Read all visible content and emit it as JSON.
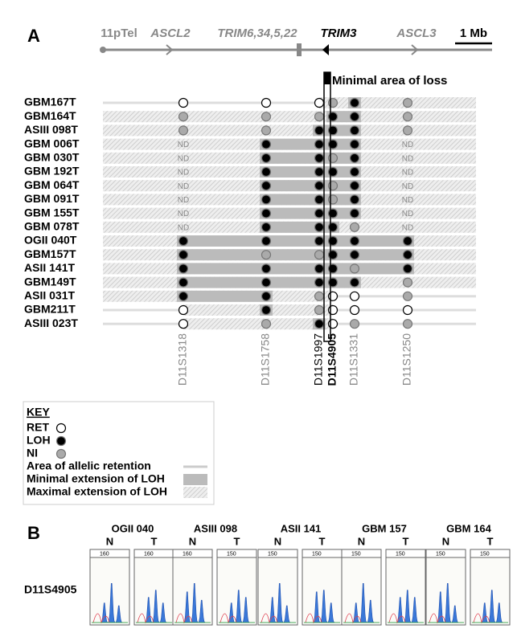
{
  "panel_a": {
    "label": "A",
    "chromosome": {
      "labels": [
        "11pTel",
        "ASCL2",
        "TRIM6,34,5,22",
        "TRIM3",
        "ASCL3"
      ],
      "scale": "1 Mb"
    },
    "annotation": "Minimal area of loss",
    "markers": [
      "D11S1318",
      "D11S1758",
      "D11S1997",
      "D11S4905",
      "D11S1331",
      "D11S1250"
    ],
    "samples": [
      {
        "name": "GBM167T",
        "calls": [
          "RET",
          "RET",
          "RET",
          "NI",
          "LOH",
          "NI"
        ]
      },
      {
        "name": "GBM164T",
        "calls": [
          "NI",
          "NI",
          "NI",
          "LOH",
          "LOH",
          "NI"
        ]
      },
      {
        "name": "ASIII 098T",
        "calls": [
          "NI",
          "NI",
          "LOH",
          "LOH",
          "LOH",
          "NI"
        ]
      },
      {
        "name": "GBM 006T",
        "calls": [
          "ND",
          "LOH",
          "LOH",
          "LOH",
          "LOH",
          "ND"
        ]
      },
      {
        "name": "GBM 030T",
        "calls": [
          "ND",
          "LOH",
          "LOH",
          "NI",
          "LOH",
          "ND"
        ]
      },
      {
        "name": "GBM 192T",
        "calls": [
          "ND",
          "LOH",
          "LOH",
          "LOH",
          "LOH",
          "ND"
        ]
      },
      {
        "name": "GBM 064T",
        "calls": [
          "ND",
          "LOH",
          "LOH",
          "NI",
          "LOH",
          "ND"
        ]
      },
      {
        "name": "GBM 091T",
        "calls": [
          "ND",
          "LOH",
          "LOH",
          "NI",
          "LOH",
          "ND"
        ]
      },
      {
        "name": "GBM 155T",
        "calls": [
          "ND",
          "LOH",
          "LOH",
          "LOH",
          "LOH",
          "ND"
        ]
      },
      {
        "name": "GBM 078T",
        "calls": [
          "ND",
          "LOH",
          "LOH",
          "LOH",
          "NI",
          "ND"
        ]
      },
      {
        "name": "OGII 040T",
        "calls": [
          "LOH",
          "LOH",
          "LOH",
          "LOH",
          "LOH",
          "LOH"
        ]
      },
      {
        "name": "GBM157T",
        "calls": [
          "LOH",
          "NI",
          "NI",
          "LOH",
          "LOH",
          "LOH"
        ]
      },
      {
        "name": "ASII 141T",
        "calls": [
          "LOH",
          "LOH",
          "LOH",
          "LOH",
          "NI",
          "LOH"
        ]
      },
      {
        "name": "GBM149T",
        "calls": [
          "LOH",
          "LOH",
          "LOH",
          "LOH",
          "LOH",
          "NI"
        ]
      },
      {
        "name": "ASII 031T",
        "calls": [
          "LOH",
          "LOH",
          "NI",
          "RET",
          "RET",
          "NI"
        ]
      },
      {
        "name": "GBM211T",
        "calls": [
          "RET",
          "LOH",
          "NI",
          "RET",
          "RET",
          "RET"
        ]
      },
      {
        "name": "ASIII 023T",
        "calls": [
          "RET",
          "NI",
          "LOH",
          "RET",
          "NI",
          "NI"
        ]
      }
    ]
  },
  "key": {
    "title": "KEY",
    "codes": [
      "RET",
      "LOH",
      "NI"
    ],
    "areas": [
      "Area of allelic retention",
      "Minimal extension of LOH",
      "Maximal extension of LOH"
    ]
  },
  "panel_b": {
    "label": "B",
    "marker": "D11S4905",
    "samples": [
      {
        "name": "OGII 040",
        "lanes": [
          "N",
          "T"
        ],
        "scales": [
          "160",
          "160"
        ]
      },
      {
        "name": "ASIII 098",
        "lanes": [
          "N",
          "T"
        ],
        "scales": [
          "160",
          "150"
        ]
      },
      {
        "name": "ASII 141",
        "lanes": [
          "N",
          "T"
        ],
        "scales": [
          "150",
          "150"
        ]
      },
      {
        "name": "GBM 157",
        "lanes": [
          "N",
          "T"
        ],
        "scales": [
          "150",
          "150"
        ]
      },
      {
        "name": "GBM 164",
        "lanes": [
          "N",
          "T"
        ],
        "scales": [
          "150",
          "150"
        ]
      }
    ]
  }
}
